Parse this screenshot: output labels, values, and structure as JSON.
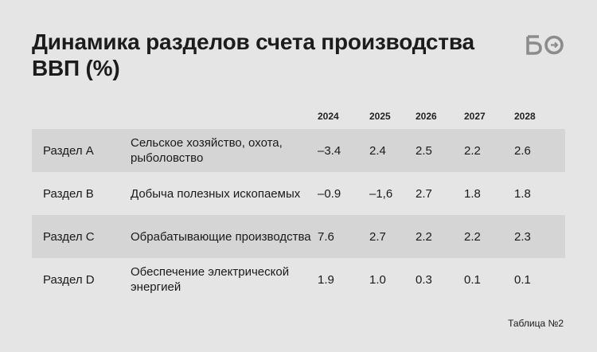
{
  "header": {
    "title": "Динамика разделов счета производства ВВП (%)",
    "logo_text": "БО"
  },
  "table": {
    "columns": [
      "2024",
      "2025",
      "2026",
      "2027",
      "2028"
    ],
    "rows": [
      {
        "code": "Раздел А",
        "desc": "Сельское хозяйство, охота, рыболовство",
        "values": [
          "–3.4",
          "2.4",
          "2.5",
          "2.2",
          "2.6"
        ]
      },
      {
        "code": "Раздел В",
        "desc": "Добыча полезных ископаемых",
        "values": [
          "–0.9",
          "–1,6",
          "2.7",
          "1.8",
          "1.8"
        ]
      },
      {
        "code": "Раздел С",
        "desc": "Обрабатывающие производства",
        "values": [
          "7.6",
          "2.7",
          "2.2",
          "2.2",
          "2.3"
        ]
      },
      {
        "code": "Раздел D",
        "desc": "Обеспечение электрической энергией",
        "values": [
          "1.9",
          "1.0",
          "0.3",
          "0.1",
          "0.1"
        ]
      }
    ]
  },
  "footer": {
    "caption": "Таблица №2"
  },
  "colors": {
    "background": "#e5e5e5",
    "row_shade": "#d5d5d5",
    "logo": "#8c8c8c"
  }
}
